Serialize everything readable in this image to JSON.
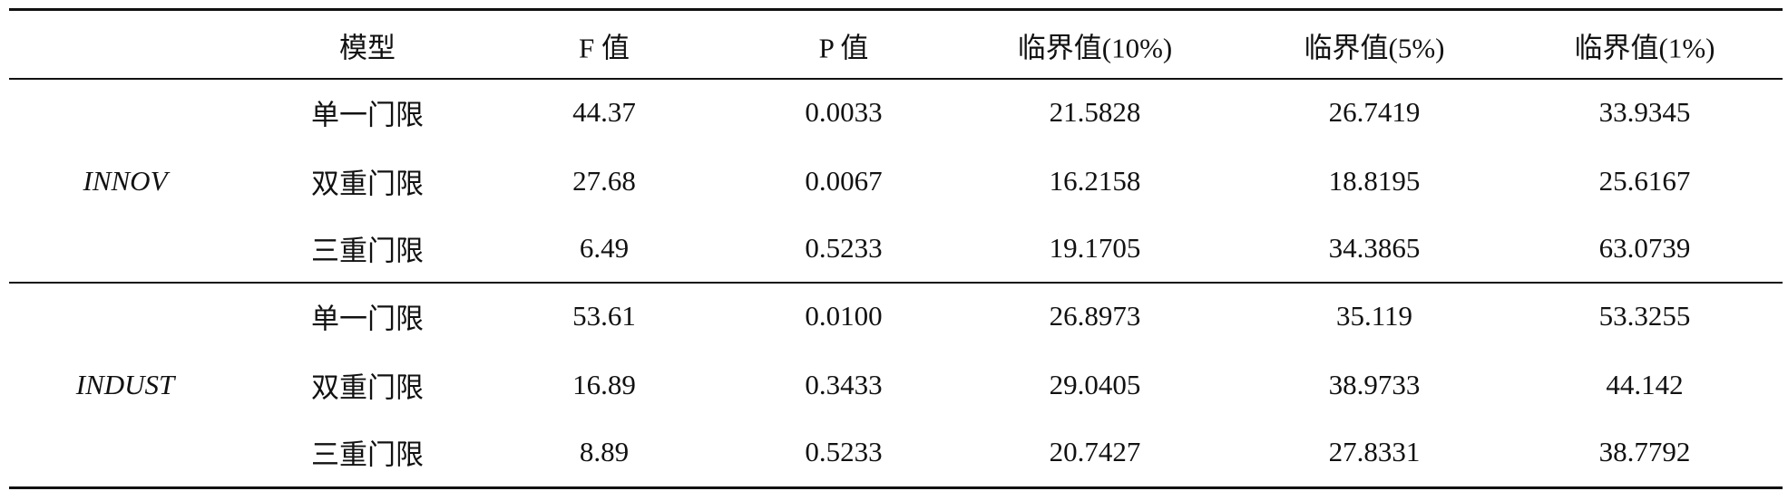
{
  "table": {
    "header": [
      "",
      "模型",
      "F 值",
      "P 值",
      "临界值(10%)",
      "临界值(5%)",
      "临界值(1%)"
    ],
    "groups": [
      {
        "label": "INNOV",
        "rows": [
          [
            "单一门限",
            "44.37",
            "0.0033",
            "21.5828",
            "26.7419",
            "33.9345"
          ],
          [
            "双重门限",
            "27.68",
            "0.0067",
            "16.2158",
            "18.8195",
            "25.6167"
          ],
          [
            "三重门限",
            "6.49",
            "0.5233",
            "19.1705",
            "34.3865",
            "63.0739"
          ]
        ]
      },
      {
        "label": "INDUST",
        "rows": [
          [
            "单一门限",
            "53.61",
            "0.0100",
            "26.8973",
            "35.119",
            "53.3255"
          ],
          [
            "双重门限",
            "16.89",
            "0.3433",
            "29.0405",
            "38.9733",
            "44.142"
          ],
          [
            "三重门限",
            "8.89",
            "0.5233",
            "20.7427",
            "27.8331",
            "38.7792"
          ]
        ]
      }
    ]
  }
}
